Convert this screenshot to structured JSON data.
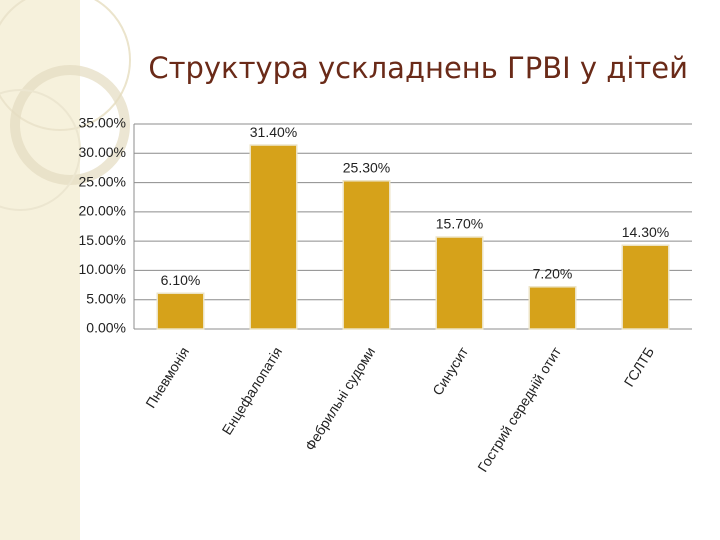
{
  "chart_data": {
    "type": "bar",
    "title": "Структура ускладнень ГРВІ у дітей",
    "categories": [
      "Пневмонія",
      "Енцефалопатія",
      "Фебрильні судоми",
      "Синусит",
      "Гострий середній отит",
      "ГСЛТБ"
    ],
    "values": [
      6.1,
      31.4,
      25.3,
      15.7,
      7.2,
      14.3
    ],
    "value_labels": [
      "6.10%",
      "31.40%",
      "25.30%",
      "15.70%",
      "7.20%",
      "14.30%"
    ],
    "color": "#d6a21a",
    "ylim": [
      0,
      35
    ],
    "yticks": [
      {
        "value": 0,
        "label": "0.00%"
      },
      {
        "value": 5,
        "label": "5.00%"
      },
      {
        "value": 10,
        "label": "10.00%"
      },
      {
        "value": 15,
        "label": "15.00%"
      },
      {
        "value": 20,
        "label": "20.00%"
      },
      {
        "value": 25,
        "label": "25.00%"
      },
      {
        "value": 30,
        "label": "30.00%"
      },
      {
        "value": 35,
        "label": "35.00%"
      }
    ],
    "grid": true
  }
}
